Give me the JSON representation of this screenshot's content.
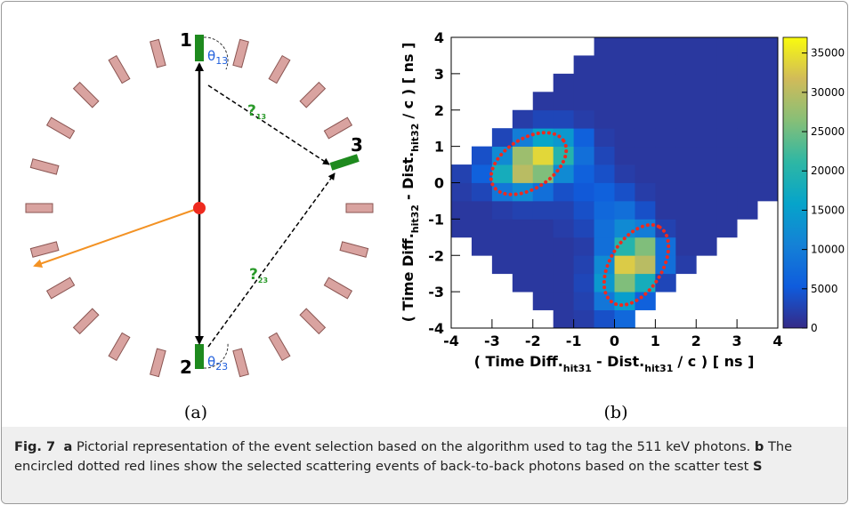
{
  "diagram": {
    "nodes": [
      {
        "label": "1"
      },
      {
        "label": "2"
      },
      {
        "label": "3"
      }
    ],
    "angles": [
      {
        "symbol": "θ",
        "subscript": "13"
      },
      {
        "symbol": "θ",
        "subscript": "23"
      }
    ],
    "paths": [
      {
        "symbol": "?",
        "subscript": "13"
      },
      {
        "symbol": "?",
        "subscript": "23"
      }
    ],
    "panel_label": "(a)"
  },
  "chart_data": {
    "type": "heatmap",
    "panel_label": "(b)",
    "x_label": {
      "main": [
        "( Time Diff.",
        "- Dist.",
        "/ c ) [ ns ]"
      ],
      "sub": [
        "hit31",
        "hit31"
      ]
    },
    "y_label": {
      "main": [
        "( Time Diff.",
        "- Dist.",
        "/ c ) [ ns ]"
      ],
      "sub": [
        "hit32",
        "hit32"
      ]
    },
    "xlim": [
      -4,
      4
    ],
    "ylim": [
      -4,
      4
    ],
    "xticks": [
      -4,
      -3,
      -2,
      -1,
      0,
      1,
      2,
      3,
      4
    ],
    "yticks": [
      -4,
      -3,
      -2,
      -1,
      0,
      1,
      2,
      3,
      4
    ],
    "x_bins": [
      -4,
      -3.5,
      -3,
      -2.5,
      -2,
      -1.5,
      -1,
      -0.5,
      0,
      0.5,
      1,
      1.5,
      2,
      2.5,
      3,
      3.5,
      4
    ],
    "y_bins": [
      -4,
      -3.5,
      -3,
      -2.5,
      -2,
      -1.5,
      -1,
      -0.5,
      0,
      0.5,
      1,
      1.5,
      2,
      2.5,
      3,
      3.5,
      4
    ],
    "zlim": [
      0,
      37000
    ],
    "zticks": [
      0,
      5000,
      10000,
      15000,
      20000,
      25000,
      30000,
      35000
    ],
    "colormap": [
      "#352a87",
      "#0f5cdd",
      "#1481d6",
      "#06a4ca",
      "#2eb7a4",
      "#87bf77",
      "#d1bb59",
      "#f9fb0e"
    ],
    "z": [
      [
        null,
        null,
        null,
        null,
        null,
        1500,
        2000,
        4000,
        7000,
        null,
        null,
        null,
        null,
        null,
        null,
        null
      ],
      [
        null,
        null,
        null,
        null,
        1500,
        1500,
        2500,
        9000,
        15000,
        6000,
        null,
        null,
        null,
        null,
        null,
        null
      ],
      [
        null,
        null,
        null,
        1500,
        1500,
        1500,
        3000,
        14000,
        26000,
        18000,
        3000,
        null,
        null,
        null,
        null,
        null
      ],
      [
        null,
        null,
        1500,
        1500,
        1500,
        1500,
        2500,
        12000,
        33000,
        30000,
        8000,
        2000,
        null,
        null,
        null,
        null
      ],
      [
        null,
        1500,
        1500,
        1500,
        1500,
        1500,
        2000,
        8000,
        20000,
        26000,
        8000,
        1500,
        1500,
        null,
        null,
        null
      ],
      [
        1500,
        1500,
        1500,
        1500,
        1500,
        2000,
        3000,
        8000,
        12000,
        10000,
        2500,
        1500,
        1500,
        1500,
        null,
        null
      ],
      [
        1500,
        1500,
        2000,
        2500,
        2500,
        2500,
        4000,
        7000,
        8000,
        4000,
        1500,
        1500,
        1500,
        1500,
        1500,
        null
      ],
      [
        2000,
        3000,
        9000,
        12000,
        8000,
        4000,
        5000,
        6000,
        4000,
        2000,
        1500,
        1500,
        1500,
        1500,
        1500,
        1500
      ],
      [
        2500,
        6000,
        18000,
        30000,
        26000,
        12000,
        6000,
        4000,
        2000,
        1500,
        1500,
        1500,
        1500,
        1500,
        1500,
        1500
      ],
      [
        null,
        4000,
        12000,
        28000,
        34000,
        20000,
        8000,
        3000,
        1500,
        1500,
        1500,
        1500,
        1500,
        1500,
        1500,
        1500
      ],
      [
        null,
        null,
        3000,
        10000,
        16000,
        14000,
        6000,
        2000,
        1500,
        1500,
        1500,
        1500,
        1500,
        1500,
        1500,
        1500
      ],
      [
        null,
        null,
        null,
        2000,
        3000,
        3000,
        2000,
        1500,
        1500,
        1500,
        1500,
        1500,
        1500,
        1500,
        1500,
        1500
      ],
      [
        null,
        null,
        null,
        null,
        1500,
        1500,
        1500,
        1500,
        1500,
        1500,
        1500,
        1500,
        1500,
        1500,
        1500,
        1500
      ],
      [
        null,
        null,
        null,
        null,
        null,
        1500,
        1500,
        1500,
        1500,
        1500,
        1500,
        1500,
        1500,
        1500,
        1500,
        1500
      ],
      [
        null,
        null,
        null,
        null,
        null,
        null,
        1500,
        1500,
        1500,
        1500,
        1500,
        1500,
        1500,
        1500,
        1500,
        1500
      ],
      [
        null,
        null,
        null,
        null,
        null,
        null,
        null,
        1500,
        1500,
        1500,
        1500,
        1500,
        1500,
        1500,
        1500,
        1500
      ]
    ]
  },
  "caption": {
    "figure": "Fig. 7",
    "part_a": "a",
    "text_a": "Pictorial representation of the event selection based on the algorithm used to tag the 511 keV photons.",
    "part_b": "b",
    "text_b": "The encircled dotted red lines show the selected scattering events of back-to-back photons based on the scatter test",
    "symbol": "S"
  }
}
